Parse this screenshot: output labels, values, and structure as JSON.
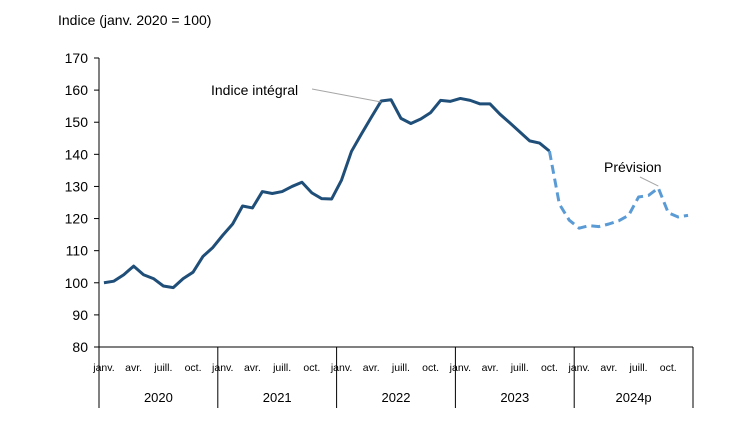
{
  "chart_data": {
    "type": "line",
    "title": "",
    "ylabel": "Indice (janv. 2020 = 100)",
    "ylim": [
      80,
      170
    ],
    "yticks": [
      80,
      90,
      100,
      110,
      120,
      130,
      140,
      150,
      160,
      170
    ],
    "grid": false,
    "legend": "none",
    "month_labels": [
      "janv.",
      "avr.",
      "juill.",
      "oct.",
      "janv.",
      "avr.",
      "juill.",
      "oct.",
      "janv.",
      "avr.",
      "juill.",
      "oct.",
      "janv.",
      "avr.",
      "juill.",
      "oct.",
      "janv.",
      "avr.",
      "juill.",
      "oct."
    ],
    "year_labels": [
      "2020",
      "2021",
      "2022",
      "2023",
      "2024p"
    ],
    "colors": {
      "actual": "#1f4e79",
      "forecast": "#5b9bd5",
      "axis": "#000000",
      "leader": "#a6a6a6"
    },
    "annotations": [
      {
        "text": "Indice intégral",
        "series": "actual"
      },
      {
        "text": "Prévision",
        "series": "forecast"
      }
    ],
    "series": [
      {
        "key": "actual",
        "style": "solid",
        "x": [
          "2020-01",
          "2020-02",
          "2020-03",
          "2020-04",
          "2020-05",
          "2020-06",
          "2020-07",
          "2020-08",
          "2020-09",
          "2020-10",
          "2020-11",
          "2020-12",
          "2021-01",
          "2021-02",
          "2021-03",
          "2021-04",
          "2021-05",
          "2021-06",
          "2021-07",
          "2021-08",
          "2021-09",
          "2021-10",
          "2021-11",
          "2021-12",
          "2022-01",
          "2022-02",
          "2022-03",
          "2022-04",
          "2022-05",
          "2022-06",
          "2022-07",
          "2022-08",
          "2022-09",
          "2022-10",
          "2022-11",
          "2022-12",
          "2023-01",
          "2023-02",
          "2023-03",
          "2023-04",
          "2023-05",
          "2023-06",
          "2023-07",
          "2023-08",
          "2023-09",
          "2023-10"
        ],
        "values": [
          100,
          100.5,
          102.5,
          105.2,
          102.5,
          101.3,
          99,
          98.5,
          101.3,
          103.3,
          108.2,
          111,
          114.8,
          118.3,
          123.9,
          123.3,
          128.4,
          127.8,
          128.4,
          130,
          131.3,
          128,
          126.2,
          126.1,
          132,
          140.9,
          146.3,
          151.5,
          156.6,
          157,
          151.2,
          149.6,
          151,
          153,
          156.8,
          156.5,
          157.4,
          156.8,
          155.7,
          155.7,
          152.5,
          149.8,
          147,
          144.2,
          143.5,
          141
        ]
      },
      {
        "key": "forecast",
        "style": "dashed",
        "x": [
          "2023-10",
          "2023-11",
          "2023-12",
          "2024-01",
          "2024-02",
          "2024-03",
          "2024-04",
          "2024-05",
          "2024-06",
          "2024-07",
          "2024-08",
          "2024-09",
          "2024-10",
          "2024-11",
          "2024-12"
        ],
        "values": [
          141,
          124.5,
          119.5,
          117,
          117.8,
          117.5,
          118.3,
          119.3,
          121,
          126.7,
          127.2,
          129.5,
          121.8,
          120.5,
          121
        ]
      }
    ]
  }
}
